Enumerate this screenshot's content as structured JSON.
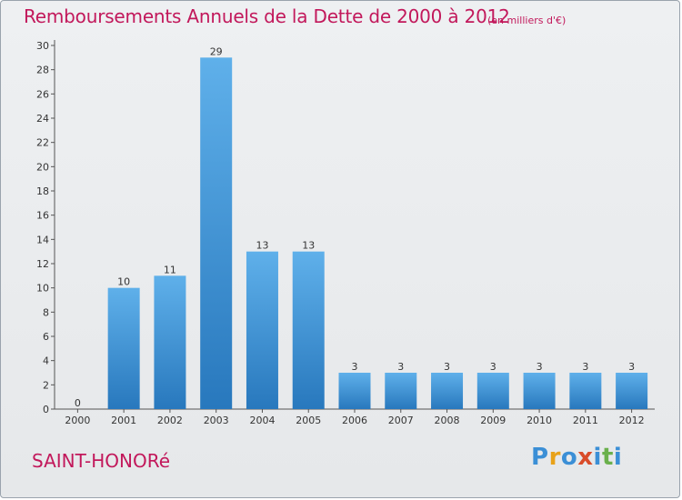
{
  "header": {
    "title": "Remboursements Annuels de la Dette de 2000 à 2012",
    "subtitle": "(en milliers d'€)"
  },
  "footer": {
    "location": "SAINT-HONORé",
    "brand_letters": [
      {
        "char": "P",
        "color": "#3b8fd6"
      },
      {
        "char": "r",
        "color": "#e8a21a"
      },
      {
        "char": "o",
        "color": "#3b8fd6"
      },
      {
        "char": "x",
        "color": "#d94c2a"
      },
      {
        "char": "i",
        "color": "#3b8fd6"
      },
      {
        "char": "t",
        "color": "#6ab04c"
      },
      {
        "char": "i",
        "color": "#3b8fd6"
      }
    ]
  },
  "colors": {
    "title": "#c2185b",
    "bar_top": "#5fb0ea",
    "bar_bottom": "#2878bd",
    "background": "#e9ebed"
  },
  "chart_data": {
    "type": "bar",
    "title": "Remboursements Annuels de la Dette de 2000 à 2012",
    "subtitle": "(en milliers d'€)",
    "xlabel": "",
    "ylabel": "",
    "categories": [
      "2000",
      "2001",
      "2002",
      "2003",
      "2004",
      "2005",
      "2006",
      "2007",
      "2008",
      "2009",
      "2010",
      "2011",
      "2012"
    ],
    "values": [
      0,
      10,
      11,
      29,
      13,
      13,
      3,
      3,
      3,
      3,
      3,
      3,
      3
    ],
    "ylim": [
      0,
      30
    ],
    "yticks": [
      0,
      2,
      4,
      6,
      8,
      10,
      12,
      14,
      16,
      18,
      20,
      22,
      24,
      26,
      28,
      30
    ],
    "grid": false,
    "data_labels": true
  }
}
